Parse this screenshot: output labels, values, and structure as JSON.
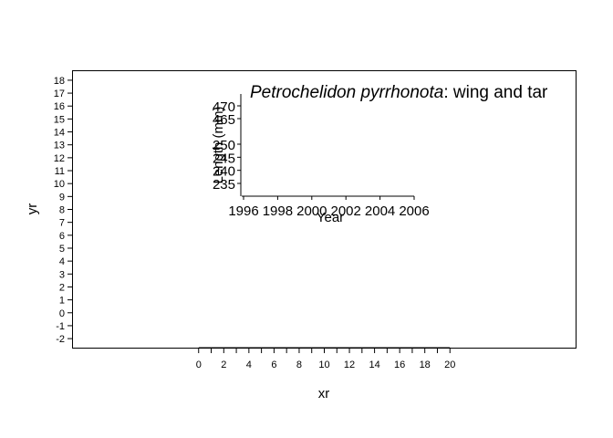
{
  "chart_data": [
    {
      "type": "scatter",
      "title": "",
      "xlabel": "xr",
      "ylabel": "yr",
      "xlim": [
        -10,
        30
      ],
      "ylim": [
        -2.7,
        18.7
      ],
      "x_ticks": [
        0,
        1,
        2,
        3,
        4,
        5,
        6,
        7,
        8,
        9,
        10,
        11,
        12,
        13,
        14,
        15,
        16,
        17,
        18,
        19,
        20
      ],
      "x_tick_labels": [
        0,
        2,
        4,
        6,
        8,
        10,
        12,
        14,
        16,
        18,
        20
      ],
      "y_tick_labels": [
        -2,
        -1,
        0,
        1,
        2,
        3,
        4,
        5,
        6,
        7,
        8,
        9,
        10,
        11,
        12,
        13,
        14,
        15,
        16,
        17,
        18
      ],
      "grid": false,
      "series": []
    },
    {
      "type": "line",
      "title_italic": "Petrochelidon pyrrhonota",
      "title_rest": ": wing and tar",
      "xlabel": "Year",
      "ylabel": "Length (mm)",
      "x_ticks": [
        1996,
        1998,
        2000,
        2002,
        2004,
        2006
      ],
      "y_ticks": [
        235,
        240,
        245,
        250,
        465,
        470
      ],
      "grid": false,
      "series": []
    }
  ]
}
